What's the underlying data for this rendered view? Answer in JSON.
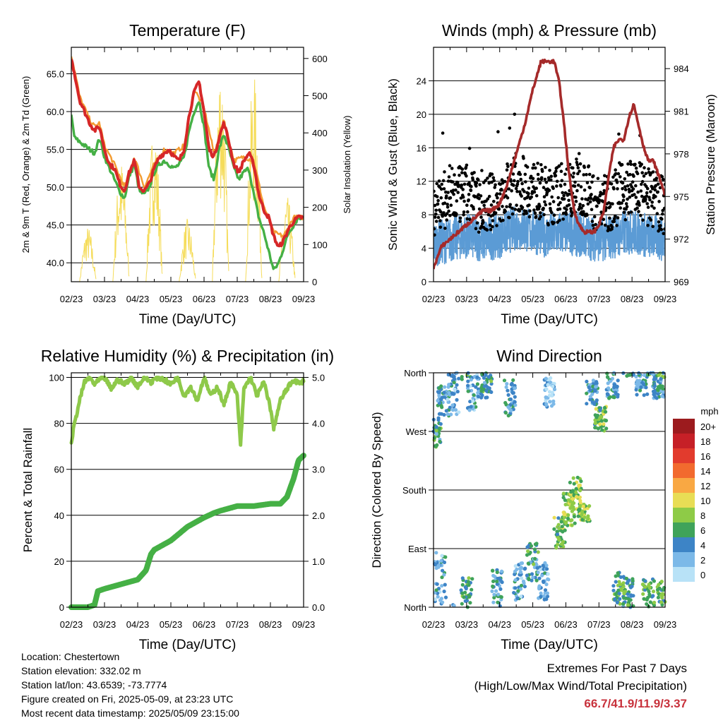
{
  "chart_data": [
    {
      "type": "line",
      "title": "Temperature (F)",
      "xlabel": "Time (Day/UTC)",
      "ylabel_left": "2m & 9m T (Red, Orange) & 2m Td (Green)",
      "ylabel_right": "Solar Insolation (Yellow)",
      "x_ticks": [
        "02/23",
        "03/23",
        "04/23",
        "05/23",
        "06/23",
        "07/23",
        "08/23",
        "09/23"
      ],
      "ylim_left": [
        37.5,
        68.5
      ],
      "yticks_left": [
        "40.0",
        "45.0",
        "50.0",
        "55.0",
        "60.0",
        "65.0"
      ],
      "ylim_right": [
        0,
        630
      ],
      "yticks_right": [
        "0",
        "100",
        "200",
        "300",
        "400",
        "500",
        "600"
      ],
      "grid": true,
      "series": [
        {
          "name": "2m T",
          "color": "#d62728",
          "x": [
            0,
            0.1,
            0.25,
            0.4,
            0.55,
            0.7,
            0.85,
            1.0,
            1.15,
            1.3,
            1.45,
            1.6,
            1.75,
            1.9,
            2.05,
            2.2,
            2.35,
            2.5,
            2.65,
            2.8,
            2.95,
            3.1,
            3.25,
            3.4,
            3.55,
            3.7,
            3.85,
            4.0,
            4.15,
            4.3,
            4.45,
            4.6,
            4.75,
            4.9,
            5.05,
            5.2,
            5.35,
            5.5,
            5.65,
            5.8,
            5.95,
            6.1,
            6.25,
            6.4,
            6.55,
            6.7,
            6.85,
            7.0
          ],
          "y": [
            67,
            65,
            61.5,
            60,
            58.5,
            57.5,
            58,
            55,
            53,
            52.5,
            50.5,
            49.5,
            52,
            53.5,
            50,
            49.5,
            50.5,
            52.5,
            54,
            54.5,
            55,
            54,
            53.5,
            55,
            59.5,
            62.5,
            64,
            60,
            55,
            54,
            56.5,
            58.5,
            56,
            53,
            52,
            53.5,
            54.5,
            53,
            49,
            47,
            46,
            43.5,
            42,
            43,
            44.5,
            45.5,
            46,
            46
          ]
        },
        {
          "name": "9m T",
          "color": "#f39c32",
          "x": [
            0,
            0.1,
            0.25,
            0.4,
            0.55,
            0.7,
            0.85,
            1.0,
            1.3,
            1.6,
            1.9,
            2.2,
            2.5,
            2.8,
            3.1,
            3.4,
            3.7,
            4.0,
            4.3,
            4.6,
            4.9,
            5.2,
            5.5,
            5.8,
            6.1,
            6.4,
            6.7,
            7.0
          ],
          "y": [
            67.5,
            65.5,
            62,
            60.5,
            59,
            58,
            58.5,
            55.5,
            53,
            50,
            54,
            50,
            53,
            55,
            54.5,
            55.5,
            63,
            60.5,
            54.5,
            59,
            53.5,
            54,
            53.5,
            47.5,
            44,
            43.5,
            46,
            46
          ]
        },
        {
          "name": "2m Td",
          "color": "#45b045",
          "x": [
            0,
            0.1,
            0.25,
            0.4,
            0.55,
            0.7,
            0.85,
            1.0,
            1.15,
            1.3,
            1.45,
            1.6,
            1.75,
            1.9,
            2.05,
            2.2,
            2.35,
            2.5,
            2.65,
            2.8,
            2.95,
            3.1,
            3.25,
            3.4,
            3.55,
            3.7,
            3.85,
            4.0,
            4.15,
            4.3,
            4.45,
            4.6,
            4.75,
            4.9,
            5.05,
            5.2,
            5.35,
            5.5,
            5.65,
            5.8,
            5.95,
            6.1,
            6.25,
            6.4,
            6.55,
            6.7,
            6.85,
            7.0
          ],
          "y": [
            59.5,
            56.5,
            56,
            55.5,
            55,
            54.5,
            56.5,
            54,
            52.5,
            51,
            49.5,
            48.5,
            51.5,
            53,
            49.5,
            49,
            50,
            52,
            53,
            53.5,
            53,
            52.5,
            53,
            54,
            57.5,
            60,
            61.5,
            58,
            52.5,
            51,
            55,
            57,
            55,
            52.5,
            51,
            52,
            52.5,
            49,
            46,
            44,
            41.5,
            39,
            40,
            42,
            44,
            45,
            46,
            46
          ]
        },
        {
          "name": "Solar Insolation",
          "axis": "right",
          "color": "#f5dc5a",
          "days": [
            0,
            1,
            2,
            3,
            4,
            5,
            6
          ],
          "peaks": [
            150,
            330,
            430,
            170,
            610,
            560,
            230
          ]
        }
      ]
    },
    {
      "type": "scatter",
      "title": "Winds (mph) & Pressure (mb)",
      "xlabel": "Time (Day/UTC)",
      "ylabel_left": "Sonic Wind & Gust (Blue, Black)",
      "ylabel_right": "Station Pressure (Maroon)",
      "x_ticks": [
        "02/23",
        "03/23",
        "04/23",
        "05/23",
        "06/23",
        "07/23",
        "08/23",
        "09/23"
      ],
      "ylim_left": [
        0,
        28
      ],
      "yticks_left": [
        "0",
        "4",
        "8",
        "12",
        "16",
        "20",
        "24"
      ],
      "ylim_right": [
        969,
        985.5
      ],
      "yticks_right": [
        "969",
        "972",
        "975",
        "978",
        "981",
        "984"
      ],
      "grid": true,
      "series": [
        {
          "name": "Station Pressure",
          "color": "#a52a2a",
          "axis": "right",
          "x": [
            0,
            0.25,
            0.5,
            0.75,
            1.0,
            1.25,
            1.5,
            1.75,
            2.0,
            2.25,
            2.5,
            2.75,
            3.0,
            3.25,
            3.4,
            3.5,
            3.65,
            3.8,
            3.95,
            4.1,
            4.25,
            4.4,
            4.55,
            4.7,
            4.85,
            5.0,
            5.15,
            5.3,
            5.45,
            5.6,
            5.75,
            5.9,
            6.05,
            6.2,
            6.35,
            6.5,
            6.65,
            6.8,
            6.95,
            7.0
          ],
          "y": [
            970,
            971.5,
            972,
            972.5,
            973,
            973.5,
            974,
            974,
            974.5,
            976,
            978,
            980,
            982.5,
            984.5,
            984.5,
            984.5,
            984.5,
            983,
            980,
            976.5,
            974,
            973,
            972.5,
            972.5,
            972.5,
            973,
            974,
            976.5,
            978.5,
            979,
            979,
            980.5,
            981.5,
            980,
            978.5,
            977.5,
            977.5,
            976.5,
            975.5,
            975
          ]
        },
        {
          "name": "Sonic Wind",
          "color": "#5b9bd5",
          "mean": [
            4.5,
            5,
            5.5,
            5,
            5.5,
            6.5,
            6,
            5.5,
            6,
            5.5,
            5,
            5.5,
            6,
            5.5,
            5
          ]
        },
        {
          "name": "Gust",
          "color": "#000000",
          "mean": [
            9,
            10,
            10.5,
            9,
            10,
            12,
            11,
            10,
            11,
            11.5,
            9,
            10,
            11.5,
            10,
            9
          ]
        }
      ]
    },
    {
      "type": "line",
      "title": "Relative Humidity (%) & Precipitation (in)",
      "xlabel": "Time (Day/UTC)",
      "ylabel_left": "Percent & Total Rainfall",
      "x_ticks": [
        "02/23",
        "03/23",
        "04/23",
        "05/23",
        "06/23",
        "07/23",
        "08/23",
        "09/23"
      ],
      "ylim_left": [
        0,
        102
      ],
      "yticks_left": [
        "0",
        "20",
        "40",
        "60",
        "80",
        "100"
      ],
      "ylim_right": [
        0,
        5.1
      ],
      "yticks_right": [
        "0.0",
        "1.0",
        "2.0",
        "3.0",
        "4.0",
        "5.0"
      ],
      "grid": true,
      "series": [
        {
          "name": "Relative Humidity",
          "color": "#8ec94a",
          "x": [
            0,
            0.1,
            0.25,
            0.4,
            0.55,
            0.7,
            0.85,
            1.0,
            1.2,
            1.4,
            1.6,
            1.8,
            2.0,
            2.2,
            2.4,
            2.6,
            2.8,
            3.0,
            3.2,
            3.4,
            3.6,
            3.8,
            4.0,
            4.2,
            4.4,
            4.6,
            4.8,
            5.0,
            5.1,
            5.2,
            5.4,
            5.6,
            5.8,
            5.95,
            6.1,
            6.3,
            6.5,
            6.7,
            6.9,
            7.0
          ],
          "y": [
            72,
            80,
            90,
            98,
            100,
            97,
            99,
            100,
            95,
            99,
            97,
            100,
            96,
            100,
            98,
            100,
            99,
            97,
            100,
            92,
            96,
            90,
            100,
            92,
            96,
            88,
            98,
            92,
            70,
            95,
            100,
            92,
            98,
            90,
            78,
            90,
            95,
            99,
            97,
            99
          ]
        },
        {
          "name": "Total Rainfall",
          "color": "#45b045",
          "axis": "right",
          "x": [
            0,
            0.5,
            0.7,
            0.8,
            1.0,
            1.5,
            2.0,
            2.25,
            2.4,
            2.5,
            3.0,
            3.5,
            4.0,
            4.3,
            4.5,
            5.0,
            5.5,
            6.0,
            6.3,
            6.5,
            6.7,
            6.85,
            7.0
          ],
          "y": [
            0,
            0,
            0.05,
            0.35,
            0.4,
            0.5,
            0.6,
            0.8,
            1.15,
            1.25,
            1.45,
            1.75,
            1.95,
            2.05,
            2.1,
            2.2,
            2.2,
            2.25,
            2.25,
            2.4,
            2.8,
            3.2,
            3.3
          ]
        }
      ]
    },
    {
      "type": "scatter",
      "title": "Wind Direction",
      "xlabel": "Time (Day/UTC)",
      "ylabel_left": "Direction (Colored By Speed)",
      "x_ticks": [
        "02/23",
        "03/23",
        "04/23",
        "05/23",
        "06/23",
        "07/23",
        "08/23",
        "09/23"
      ],
      "yticks_left": [
        "North",
        "East",
        "South",
        "West",
        "North"
      ],
      "ylim_left": [
        0,
        360
      ],
      "grid": true,
      "colorbar": {
        "title": "mph",
        "labels": [
          "20+",
          "18",
          "16",
          "14",
          "12",
          "10",
          "8",
          "6",
          "4",
          "2",
          "0"
        ],
        "colors": [
          "#9c1b1e",
          "#c62027",
          "#e23b2d",
          "#f26a2e",
          "#f9a843",
          "#e8dd55",
          "#8ecb47",
          "#3fa35a",
          "#3d84c6",
          "#7cb9e8",
          "#b8e2f7"
        ]
      },
      "clusters": [
        {
          "day": 0.05,
          "dir": 270,
          "spread": 25,
          "speed": 5
        },
        {
          "day": 0.2,
          "dir": 45,
          "spread": 40,
          "speed": 3
        },
        {
          "day": 0.3,
          "dir": 315,
          "spread": 25,
          "speed": 4
        },
        {
          "day": 0.6,
          "dir": 330,
          "spread": 35,
          "speed": 3
        },
        {
          "day": 1.0,
          "dir": 20,
          "spread": 30,
          "speed": 6
        },
        {
          "day": 1.2,
          "dir": 330,
          "spread": 30,
          "speed": 3
        },
        {
          "day": 1.6,
          "dir": 340,
          "spread": 20,
          "speed": 5
        },
        {
          "day": 1.9,
          "dir": 30,
          "spread": 30,
          "speed": 4
        },
        {
          "day": 2.3,
          "dir": 320,
          "spread": 30,
          "speed": 4
        },
        {
          "day": 2.6,
          "dir": 40,
          "spread": 30,
          "speed": 3
        },
        {
          "day": 3.0,
          "dir": 70,
          "spread": 30,
          "speed": 5
        },
        {
          "day": 3.3,
          "dir": 40,
          "spread": 30,
          "speed": 3
        },
        {
          "day": 3.5,
          "dir": 330,
          "spread": 25,
          "speed": 2
        },
        {
          "day": 3.8,
          "dir": 115,
          "spread": 25,
          "speed": 7
        },
        {
          "day": 4.1,
          "dir": 150,
          "spread": 25,
          "speed": 8
        },
        {
          "day": 4.3,
          "dir": 175,
          "spread": 25,
          "speed": 8
        },
        {
          "day": 4.55,
          "dir": 145,
          "spread": 15,
          "speed": 8
        },
        {
          "day": 4.8,
          "dir": 330,
          "spread": 20,
          "speed": 4
        },
        {
          "day": 5.05,
          "dir": 290,
          "spread": 20,
          "speed": 7
        },
        {
          "day": 5.4,
          "dir": 340,
          "spread": 20,
          "speed": 4
        },
        {
          "day": 5.6,
          "dir": 30,
          "spread": 25,
          "speed": 6
        },
        {
          "day": 5.9,
          "dir": 20,
          "spread": 25,
          "speed": 5
        },
        {
          "day": 6.3,
          "dir": 340,
          "spread": 20,
          "speed": 4
        },
        {
          "day": 6.5,
          "dir": 20,
          "spread": 25,
          "speed": 6
        },
        {
          "day": 6.8,
          "dir": 340,
          "spread": 20,
          "speed": 4
        },
        {
          "day": 6.9,
          "dir": 15,
          "spread": 25,
          "speed": 6
        }
      ]
    }
  ],
  "info": {
    "location": "Location: Chestertown",
    "elevation": "Station elevation: 332.02 m",
    "latlon": "Station lat/lon: 43.6539; -73.7774",
    "created": "Figure created on Fri, 2025-05-09, at 23:23 UTC",
    "recent": "Most recent data timestamp: 2025/05/09 23:15:00"
  },
  "extremes": {
    "line1": "Extremes For Past 7 Days",
    "line2": "(High/Low/Max Wind/Total Precipitation)",
    "values": "66.7/41.9/11.9/3.37"
  }
}
